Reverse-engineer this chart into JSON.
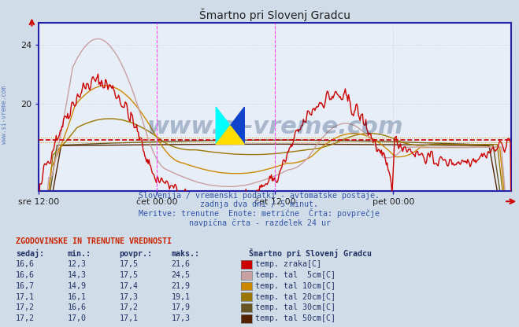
{
  "title": "Šmartno pri Slovenj Gradcu",
  "bg_color": "#d0dce8",
  "plot_bg_color": "#e8eef8",
  "axis_color": "#2222aa",
  "grid_color": "#c0c8d8",
  "x_labels": [
    "sre 12:00",
    "čet 00:00",
    "čet 12:00",
    "pet 00:00"
  ],
  "x_tick_positions": [
    0.0,
    0.25,
    0.5,
    0.75
  ],
  "ylim_min": 14.0,
  "ylim_max": 25.5,
  "yticks": [
    20,
    24
  ],
  "hline_y": 17.5,
  "vline_positions": [
    0.25,
    0.5,
    1.0
  ],
  "vline_color": "#ff44ff",
  "series_colors": {
    "temp_zraka": "#cc0000",
    "temp_tal_5cm": "#c8a0a0",
    "temp_tal_10cm": "#cc8800",
    "temp_tal_20cm": "#997700",
    "temp_tal_30cm": "#665522",
    "temp_tal_50cm": "#552200"
  },
  "watermark_text": "www.si-vreme.com",
  "watermark_color": "#1a3a6a",
  "watermark_alpha": 0.3,
  "subtitle_lines": [
    "Slovenija / vremenski podatki - avtomatske postaje.",
    "zadnja dva dni / 5 minut.",
    "Meritve: trenutne  Enote: metrične  Črta: povprečje",
    "navpična črta - razdelek 24 ur"
  ],
  "table_header": "ZGODOVINSKE IN TRENUTNE VREDNOSTI",
  "table_cols": [
    "sedaj:",
    "min.:",
    "povpr.:",
    "maks.:"
  ],
  "table_station": "Šmartno pri Slovenj Gradcu",
  "table_rows": [
    {
      "sedaj": "16,6",
      "min": "12,3",
      "povpr": "17,5",
      "maks": "21,6",
      "label": "temp. zraka[C]",
      "color": "#cc0000"
    },
    {
      "sedaj": "16,6",
      "min": "14,3",
      "povpr": "17,5",
      "maks": "24,5",
      "label": "temp. tal  5cm[C]",
      "color": "#c8a0a0"
    },
    {
      "sedaj": "16,7",
      "min": "14,9",
      "povpr": "17,4",
      "maks": "21,9",
      "label": "temp. tal 10cm[C]",
      "color": "#cc8800"
    },
    {
      "sedaj": "17,1",
      "min": "16,1",
      "povpr": "17,3",
      "maks": "19,1",
      "label": "temp. tal 20cm[C]",
      "color": "#997700"
    },
    {
      "sedaj": "17,2",
      "min": "16,6",
      "povpr": "17,2",
      "maks": "17,9",
      "label": "temp. tal 30cm[C]",
      "color": "#665522"
    },
    {
      "sedaj": "17,2",
      "min": "17,0",
      "povpr": "17,1",
      "maks": "17,3",
      "label": "temp. tal 50cm[C]",
      "color": "#552200"
    }
  ],
  "left_watermark": "www.si-vreme.com"
}
